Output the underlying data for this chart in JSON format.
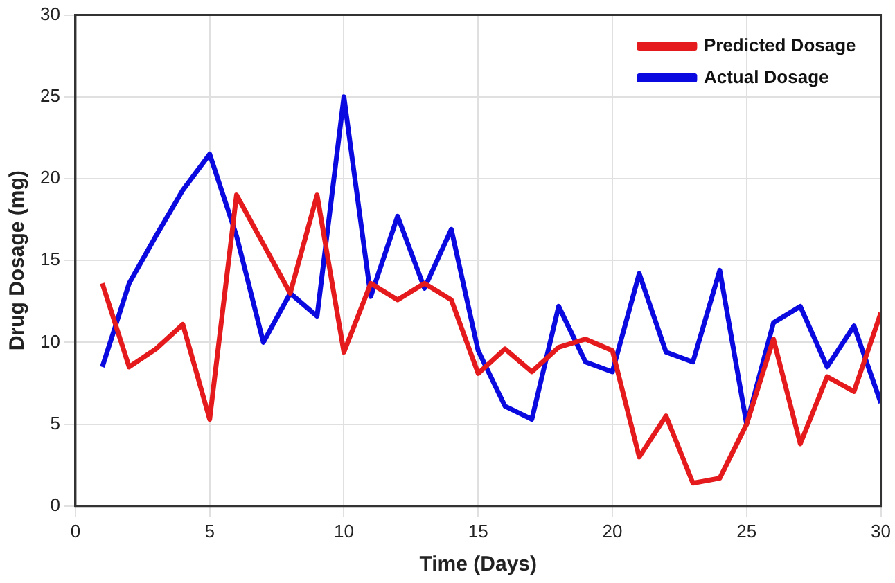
{
  "chart_data": {
    "type": "line",
    "xlabel": "Time (Days)",
    "ylabel": "Drug Dosage (mg)",
    "x": [
      1,
      2,
      3,
      4,
      5,
      6,
      7,
      8,
      9,
      10,
      11,
      12,
      13,
      14,
      15,
      16,
      17,
      18,
      19,
      20,
      21,
      22,
      23,
      24,
      25,
      26,
      27,
      28,
      29,
      30
    ],
    "series": [
      {
        "name": "Predicted Dosage",
        "color": "#e41a1c",
        "values": [
          13.6,
          8.5,
          9.6,
          11.1,
          5.3,
          19,
          16,
          13,
          19,
          9.4,
          13.6,
          12.6,
          13.6,
          12.6,
          8.1,
          9.6,
          8.2,
          9.7,
          10.2,
          9.5,
          3,
          5.5,
          1.4,
          1.7,
          5,
          10.2,
          3.8,
          7.9,
          7,
          11.8
        ]
      },
      {
        "name": "Actual Dosage",
        "color": "#0a0ae0",
        "values": [
          8.5,
          13.6,
          16.5,
          19.3,
          21.5,
          16.5,
          10,
          13,
          11.6,
          25,
          12.8,
          17.7,
          13.3,
          16.9,
          9.5,
          6.1,
          5.3,
          12.2,
          8.8,
          8.2,
          14.2,
          9.4,
          8.8,
          14.4,
          5,
          11.2,
          12.2,
          8.5,
          11,
          6.3
        ]
      }
    ],
    "xlim": [
      0,
      30
    ],
    "xticks": [
      0,
      5,
      10,
      15,
      20,
      25,
      30
    ],
    "ylim": [
      0,
      30
    ],
    "yticks": [
      0,
      5,
      10,
      15,
      20,
      25,
      30
    ],
    "grid": true,
    "legend": "top right",
    "marker": "none",
    "line_style": "solid"
  }
}
